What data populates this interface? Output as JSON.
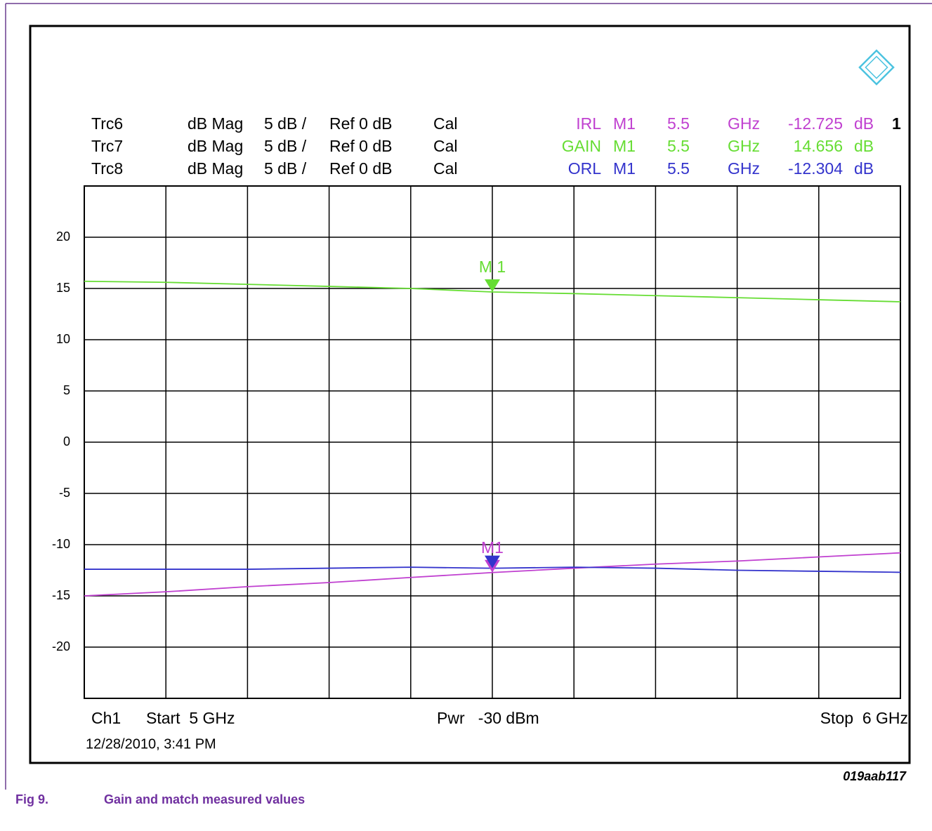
{
  "chart_data": {
    "type": "line",
    "x": [
      5,
      5.1,
      5.2,
      5.3,
      5.4,
      5.5,
      5.6,
      5.7,
      5.8,
      5.9,
      6
    ],
    "xlim": [
      5,
      6
    ],
    "xticks": [
      5,
      5.1,
      5.2,
      5.3,
      5.4,
      5.5,
      5.6,
      5.7,
      5.8,
      5.9,
      6
    ],
    "ylim": [
      -25,
      25
    ],
    "yticks": [
      -20,
      -15,
      -10,
      -5,
      0,
      5,
      10,
      15,
      20
    ],
    "grid": true,
    "series": [
      {
        "name": "IRL",
        "color": "#c040d0",
        "values": [
          -15.0,
          -14.6,
          -14.1,
          -13.7,
          -13.2,
          -12.725,
          -12.3,
          -11.9,
          -11.6,
          -11.2,
          -10.8
        ]
      },
      {
        "name": "GAIN",
        "color": "#66dd33",
        "values": [
          15.7,
          15.6,
          15.4,
          15.2,
          15.0,
          14.656,
          14.5,
          14.3,
          14.1,
          13.9,
          13.7
        ]
      },
      {
        "name": "ORL",
        "color": "#3333cc",
        "values": [
          -12.4,
          -12.4,
          -12.4,
          -12.3,
          -12.2,
          -12.304,
          -12.2,
          -12.3,
          -12.5,
          -12.6,
          -12.7
        ]
      }
    ],
    "traces": [
      {
        "name": "Trc6",
        "format": "dB Mag",
        "scale": "5 dB /",
        "ref": "Ref 0 dB",
        "cal": "Cal"
      },
      {
        "name": "Trc7",
        "format": "dB Mag",
        "scale": "5 dB /",
        "ref": "Ref 0 dB",
        "cal": "Cal"
      },
      {
        "name": "Trc8",
        "format": "dB Mag",
        "scale": "5 dB /",
        "ref": "Ref 0 dB",
        "cal": "Cal"
      }
    ],
    "readouts": [
      {
        "marker": "M1",
        "x_unit": "GHz",
        "unit": "dB"
      },
      {
        "marker": "M1",
        "x_unit": "GHz",
        "unit": "dB"
      },
      {
        "marker": "M1",
        "x_unit": "GHz",
        "unit": "dB"
      }
    ],
    "marker_index": 5,
    "marker_labels": [
      "M1",
      "M 1",
      null
    ],
    "channel_number": "1",
    "footer": {
      "channel": "Ch1",
      "start": "Start  5 GHz",
      "power": "Pwr   -30 dBm",
      "stop": "Stop  6 GHz",
      "timestamp": "12/28/2010, 3:41 PM"
    },
    "figure_id": "019aab117",
    "caption": {
      "number": "Fig 9.",
      "text": "Gain and match measured values"
    }
  }
}
